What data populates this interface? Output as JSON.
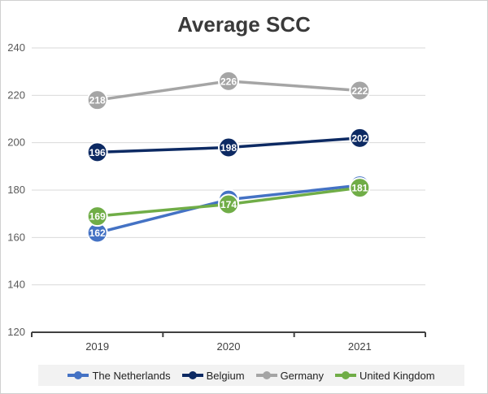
{
  "chart_data": {
    "type": "line",
    "title": "Average SCC",
    "categories": [
      "2019",
      "2020",
      "2021"
    ],
    "ylim": [
      120,
      240
    ],
    "yticks": [
      120,
      140,
      160,
      180,
      200,
      220,
      240
    ],
    "grid": true,
    "legend_position": "bottom",
    "series": [
      {
        "name": "The Netherlands",
        "color": "#4472c4",
        "values": [
          162,
          176,
          182
        ]
      },
      {
        "name": "Belgium",
        "color": "#0d2a63",
        "values": [
          196,
          198,
          202
        ]
      },
      {
        "name": "Germany",
        "color": "#a5a5a5",
        "values": [
          218,
          226,
          222
        ]
      },
      {
        "name": "United Kingdom",
        "color": "#70ad47",
        "values": [
          169,
          174,
          181
        ]
      }
    ]
  }
}
